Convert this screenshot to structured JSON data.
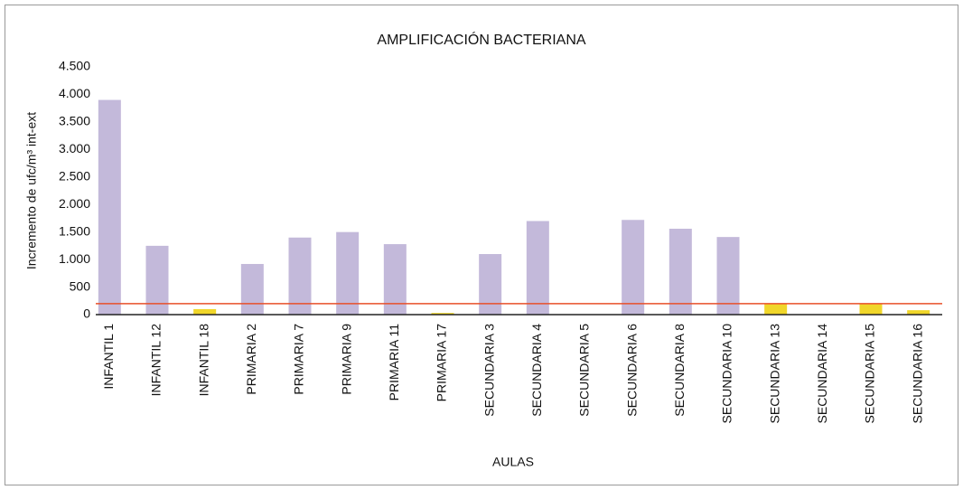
{
  "chart_data": {
    "type": "bar",
    "title": "AMPLIFICACIÓN BACTERIANA",
    "x_label": "AULAS",
    "y_label": "Incremento de ufc/m³ int-ext",
    "categories": [
      "INFANTIL 1",
      "INFANTIL 12",
      "INFANTIL 18",
      "PRIMARIA 2",
      "PRIMARIA 7",
      "PRIMARIA 9",
      "PRIMARIA 11",
      "PRIMARIA 17",
      "SECUNDARIA 3",
      "SECUNDARIA 4",
      "SECUNDARIA 5",
      "SECUNDARIA 6",
      "SECUNDARIA 8",
      "SECUNDARIA 10",
      "SECUNDARIA 13",
      "SECUNDARIA 14",
      "SECUNDARIA 15",
      "SECUNDARIA 16"
    ],
    "values": [
      3900,
      1250,
      100,
      920,
      1400,
      1500,
      1280,
      30,
      1100,
      1700,
      0,
      1720,
      1560,
      1410,
      200,
      0,
      200,
      80
    ],
    "colors": [
      "#c3b9da",
      "#c3b9da",
      "#f0d62a",
      "#c3b9da",
      "#c3b9da",
      "#c3b9da",
      "#c3b9da",
      "#f0d62a",
      "#c3b9da",
      "#c3b9da",
      "#c3b9da",
      "#c3b9da",
      "#c3b9da",
      "#c3b9da",
      "#f0d62a",
      "#f0d62a",
      "#f0d62a",
      "#f0d62a"
    ],
    "threshold": 200,
    "threshold_color": "#e8502a",
    "ylim": [
      0,
      4500
    ],
    "yticks": [
      0,
      500,
      {
        "value": 1000,
        "label": "1.000"
      },
      {
        "value": 1500,
        "label": "1.500"
      },
      {
        "value": 2000,
        "label": "2.000"
      },
      {
        "value": 2500,
        "label": "2.500"
      },
      {
        "value": 3000,
        "label": "3.000"
      },
      {
        "value": 3500,
        "label": "3.500"
      },
      {
        "value": 4000,
        "label": "4.000"
      },
      {
        "value": 4500,
        "label": "4.500"
      }
    ],
    "grid": false
  }
}
